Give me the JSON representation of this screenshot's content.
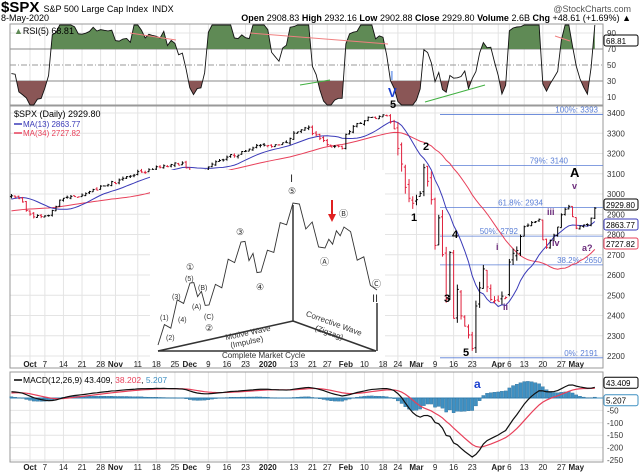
{
  "header": {
    "symbol": "$SPX",
    "name": "S&P 500 Large Cap Index",
    "exchange": "INDX",
    "brand": "@StockCharts.com",
    "date": "8-May-2020",
    "open_label": "Open",
    "open": "2908.83",
    "high_label": "High",
    "high": "2932.16",
    "low_label": "Low",
    "low": "2902.88",
    "close_label": "Close",
    "close": "2929.80",
    "volume_label": "Volume",
    "volume": "2.6B",
    "chg_label": "Chg",
    "chg": "+48.61 (+1.69%)",
    "chg_icon": "triangle-up-icon"
  },
  "colors": {
    "up": "#000000",
    "down": "#e0203c",
    "ma13": "#3a3ab8",
    "ma34": "#e8405a",
    "rsi_fill_high": "#5f8a55",
    "rsi_fill_low": "#8a5656",
    "histogram": "#3f90c2",
    "fib": "#5b7fd6",
    "wave_purple": "#6a2a7a",
    "wave_blue": "#1a3fd0"
  },
  "chart_data": {
    "type": "line",
    "price_panel": {
      "legend": "$SPX (Daily) 2929.80",
      "ma13_legend": "MA(13) 2863.77",
      "ma34_legend": "MA(34) 2727.82",
      "last_close_label": "2929.80",
      "ma13_label": "2863.77",
      "ma34_label": "2727.82",
      "ylim": [
        2170,
        3440
      ],
      "y_ticks": [
        2200,
        2300,
        2400,
        2500,
        2600,
        2700,
        2800,
        2900,
        3000,
        3100,
        3200,
        3300,
        3400
      ],
      "grid": true,
      "closes": [
        [
          "2019-08-01",
          2950
        ],
        [
          "2019-08-15",
          2850
        ],
        [
          "2019-09-03",
          2906
        ],
        [
          "2019-09-19",
          3006
        ],
        [
          "2019-09-26",
          2977
        ],
        [
          "2019-10-02",
          2887
        ],
        [
          "2019-10-08",
          2893
        ],
        [
          "2019-10-11",
          2970
        ],
        [
          "2019-10-18",
          2986
        ],
        [
          "2019-10-28",
          3039
        ],
        [
          "2019-11-08",
          3093
        ],
        [
          "2019-11-15",
          3120
        ],
        [
          "2019-11-27",
          3153
        ],
        [
          "2019-12-03",
          3093
        ],
        [
          "2019-12-13",
          3168
        ],
        [
          "2019-12-27",
          3240
        ],
        [
          "2020-01-03",
          3234
        ],
        [
          "2020-01-08",
          3253
        ],
        [
          "2020-01-17",
          3330
        ],
        [
          "2020-01-27",
          3244
        ],
        [
          "2020-01-31",
          3225
        ],
        [
          "2020-02-05",
          3334
        ],
        [
          "2020-02-12",
          3379
        ],
        [
          "2020-02-19",
          3386
        ],
        [
          "2020-02-24",
          3225
        ],
        [
          "2020-02-27",
          2979
        ],
        [
          "2020-02-28",
          2954
        ],
        [
          "2020-03-03",
          3003
        ],
        [
          "2020-03-04",
          3130
        ],
        [
          "2020-03-06",
          2972
        ],
        [
          "2020-03-09",
          2746
        ],
        [
          "2020-03-10",
          2882
        ],
        [
          "2020-03-12",
          2480
        ],
        [
          "2020-03-13",
          2711
        ],
        [
          "2020-03-16",
          2386
        ],
        [
          "2020-03-17",
          2529
        ],
        [
          "2020-03-18",
          2398
        ],
        [
          "2020-03-20",
          2304
        ],
        [
          "2020-03-23",
          2237
        ],
        [
          "2020-03-24",
          2447
        ],
        [
          "2020-03-26",
          2630
        ],
        [
          "2020-03-27",
          2541
        ],
        [
          "2020-04-01",
          2470
        ],
        [
          "2020-04-03",
          2489
        ],
        [
          "2020-04-06",
          2664
        ],
        [
          "2020-04-09",
          2790
        ],
        [
          "2020-04-14",
          2846
        ],
        [
          "2020-04-17",
          2875
        ],
        [
          "2020-04-21",
          2737
        ],
        [
          "2020-04-24",
          2837
        ],
        [
          "2020-04-29",
          2939
        ],
        [
          "2020-05-01",
          2831
        ],
        [
          "2020-05-04",
          2842
        ],
        [
          "2020-05-06",
          2848
        ],
        [
          "2020-05-07",
          2881
        ],
        [
          "2020-05-08",
          2930
        ]
      ],
      "fibonacci": [
        {
          "label": "100%: 3393",
          "price": 3393
        },
        {
          "label": "79%: 3140",
          "price": 3140
        },
        {
          "label": "61.8%: 2934",
          "price": 2934
        },
        {
          "label": "50%: 2792",
          "price": 2792
        },
        {
          "label": "38.2%: 2650",
          "price": 2650
        },
        {
          "label": "0%: 2191",
          "price": 2191
        }
      ],
      "wave_labels": {
        "w5top": "5",
        "w1": "1",
        "w2": "2",
        "w3": "3",
        "w4": "4",
        "w5": "5",
        "i": "i",
        "ii": "ii",
        "iii": "iii",
        "iv": "iv",
        "v": "v",
        "A": "A",
        "a_q": "a?"
      }
    },
    "rsi_panel": {
      "legend": "RSI(5) 68.81",
      "last_label": "68.81",
      "y_ticks": [
        10,
        30,
        50,
        70,
        90
      ],
      "levels": [
        30,
        70
      ],
      "wave_I": "I",
      "wave_V": "V"
    },
    "macd_panel": {
      "legend_prefix": "MACD(12,26,9) 43.409",
      "signal": "38.202",
      "hist": "5.207",
      "last_label": "43.409",
      "hist_label": "5.207",
      "y_ticks": [
        -250,
        -200,
        -150,
        -100,
        -50
      ],
      "wave_a": "a"
    },
    "x_ticks": [
      [
        "2019-10-01",
        "Oct"
      ],
      [
        "2019-10-07",
        "7"
      ],
      [
        "2019-10-14",
        "14"
      ],
      [
        "2019-10-21",
        "21"
      ],
      [
        "2019-10-28",
        "28"
      ],
      [
        "2019-11-01",
        "Nov"
      ],
      [
        "2019-11-11",
        "11"
      ],
      [
        "2019-11-18",
        "18"
      ],
      [
        "2019-11-25",
        "25"
      ],
      [
        "2019-12-02",
        "Dec"
      ],
      [
        "2019-12-09",
        "9"
      ],
      [
        "2019-12-16",
        "16"
      ],
      [
        "2019-12-23",
        "23"
      ],
      [
        "2020-01-02",
        "2020"
      ],
      [
        "2020-01-13",
        "13"
      ],
      [
        "2020-01-21",
        "21"
      ],
      [
        "2020-01-27",
        "27"
      ],
      [
        "2020-02-03",
        "Feb"
      ],
      [
        "2020-02-10",
        "10"
      ],
      [
        "2020-02-18",
        "18"
      ],
      [
        "2020-02-24",
        "24"
      ],
      [
        "2020-03-02",
        "Mar"
      ],
      [
        "2020-03-09",
        "9"
      ],
      [
        "2020-03-16",
        "16"
      ],
      [
        "2020-03-23",
        "23"
      ],
      [
        "2020-04-01",
        "Apr"
      ],
      [
        "2020-04-06",
        "6"
      ],
      [
        "2020-04-13",
        "13"
      ],
      [
        "2020-04-20",
        "20"
      ],
      [
        "2020-04-27",
        "27"
      ],
      [
        "2020-05-01",
        "May"
      ]
    ]
  },
  "inset": {
    "motive": "Motive Wave",
    "impulse": "(Impulse)",
    "corrective": "Corrective Wave",
    "zigzag": "(Zigzag)",
    "cycle": "Complete Market Cycle",
    "I": "I",
    "II": "II",
    "c1": "①",
    "c2": "②",
    "c3": "③",
    "c4": "④",
    "c5": "⑤",
    "cA": "Ⓐ",
    "cB": "Ⓑ",
    "cC": "Ⓒ",
    "p1": "(1)",
    "p2": "(2)",
    "p3": "(3)",
    "p4": "(4)",
    "p5": "(5)",
    "pA": "(A)",
    "pB": "(B)",
    "pC": "(C)"
  }
}
